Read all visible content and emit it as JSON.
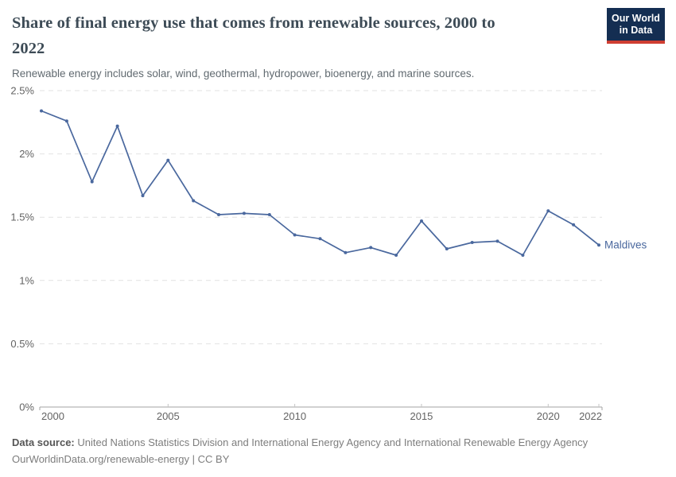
{
  "header": {
    "title": "Share of final energy use that comes from renewable sources, 2000 to 2022",
    "title_line1": "Share of final energy use that comes from renewable sources, 2000 to",
    "title_line2": "2022",
    "subtitle": "Renewable energy includes solar, wind, geothermal, hydropower, bioenergy, and marine sources.",
    "logo": {
      "line1": "Our World",
      "line2": "in Data",
      "bg_color": "#142e52",
      "accent_color": "#cf3e32"
    }
  },
  "chart_data": {
    "type": "line",
    "title": "Share of final energy use that comes from renewable sources, 2000 to 2022",
    "xlabel": "",
    "ylabel": "",
    "xlim": [
      2000,
      2022
    ],
    "ylim": [
      0,
      2.5
    ],
    "grid": "horizontal-dashed",
    "legend_position": "end-of-line",
    "grid_color": "#e2e2e2",
    "axis_color": "#a3a3a3",
    "tick_color": "#c4c4c4",
    "x": [
      2000,
      2001,
      2002,
      2003,
      2004,
      2005,
      2006,
      2007,
      2008,
      2009,
      2010,
      2011,
      2012,
      2013,
      2014,
      2015,
      2016,
      2017,
      2018,
      2019,
      2020,
      2021,
      2022
    ],
    "series": [
      {
        "name": "Maldives",
        "color": "#4a689e",
        "values": [
          2.34,
          2.26,
          1.78,
          2.22,
          1.67,
          1.95,
          1.63,
          1.52,
          1.53,
          1.52,
          1.36,
          1.33,
          1.22,
          1.26,
          1.2,
          1.47,
          1.25,
          1.3,
          1.31,
          1.2,
          1.55,
          1.44,
          1.28
        ]
      }
    ],
    "yticks": [
      {
        "value": 0,
        "label": "0%"
      },
      {
        "value": 0.5,
        "label": "0.5%"
      },
      {
        "value": 1,
        "label": "1%"
      },
      {
        "value": 1.5,
        "label": "1.5%"
      },
      {
        "value": 2,
        "label": "2%"
      },
      {
        "value": 2.5,
        "label": "2.5%"
      }
    ],
    "xticks": [
      {
        "value": 2000,
        "label": "2000"
      },
      {
        "value": 2005,
        "label": "2005"
      },
      {
        "value": 2010,
        "label": "2010"
      },
      {
        "value": 2015,
        "label": "2015"
      },
      {
        "value": 2020,
        "label": "2020"
      },
      {
        "value": 2022,
        "label": "2022"
      }
    ]
  },
  "footer": {
    "source_label": "Data source:",
    "source_text": " United Nations Statistics Division and International Energy Agency and International Renewable Energy Agency",
    "license_line": "OurWorldinData.org/renewable-energy | CC BY"
  }
}
